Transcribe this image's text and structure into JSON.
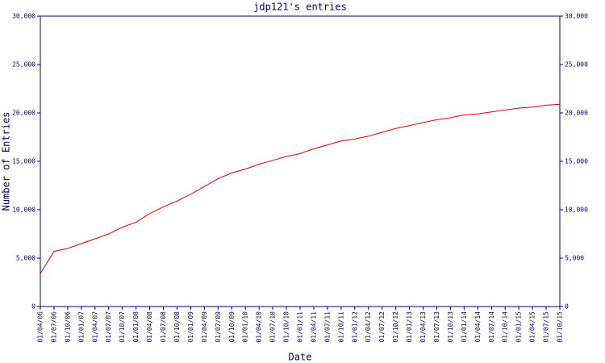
{
  "chart_data": {
    "type": "line",
    "title": "jdp121's entries",
    "xlabel": "Date",
    "ylabel": "Number of Entries",
    "categories": [
      "01/04/06",
      "01/07/06",
      "01/10/06",
      "01/01/07",
      "01/04/07",
      "01/07/07",
      "01/10/07",
      "01/01/08",
      "01/04/08",
      "01/07/08",
      "01/10/08",
      "01/01/09",
      "01/04/09",
      "01/07/09",
      "01/10/09",
      "01/01/10",
      "01/04/10",
      "01/07/10",
      "01/10/10",
      "01/01/11",
      "01/04/11",
      "01/07/11",
      "01/10/11",
      "01/01/12",
      "01/04/12",
      "01/07/12",
      "01/10/12",
      "01/01/13",
      "01/04/13",
      "01/07/13",
      "01/10/13",
      "01/01/14",
      "01/04/14",
      "01/07/14",
      "01/10/14",
      "01/01/15",
      "01/04/15",
      "01/07/15",
      "01/10/15"
    ],
    "series": [
      {
        "name": "jdp121",
        "color": "#dd0000",
        "values": [
          3400,
          5700,
          6000,
          6500,
          7000,
          7500,
          8200,
          8700,
          9600,
          10300,
          10900,
          11600,
          12400,
          13200,
          13800,
          14200,
          14700,
          15100,
          15500,
          15800,
          16300,
          16700,
          17100,
          17300,
          17600,
          18000,
          18400,
          18700,
          19000,
          19300,
          19500,
          19800,
          19900,
          20100,
          20300,
          20500,
          20600,
          20800,
          20900
        ]
      }
    ],
    "ylim": [
      0,
      30000
    ],
    "yticks": [
      0,
      {
        "value": 5000,
        "label": "5,000"
      },
      {
        "value": 10000,
        "label": "10,000"
      },
      {
        "value": 15000,
        "label": "15,000"
      },
      {
        "value": 20000,
        "label": "20,000"
      },
      {
        "value": 25000,
        "label": "25,000"
      },
      {
        "value": 30000,
        "label": "30,000"
      }
    ],
    "axis_color": "#000066"
  }
}
